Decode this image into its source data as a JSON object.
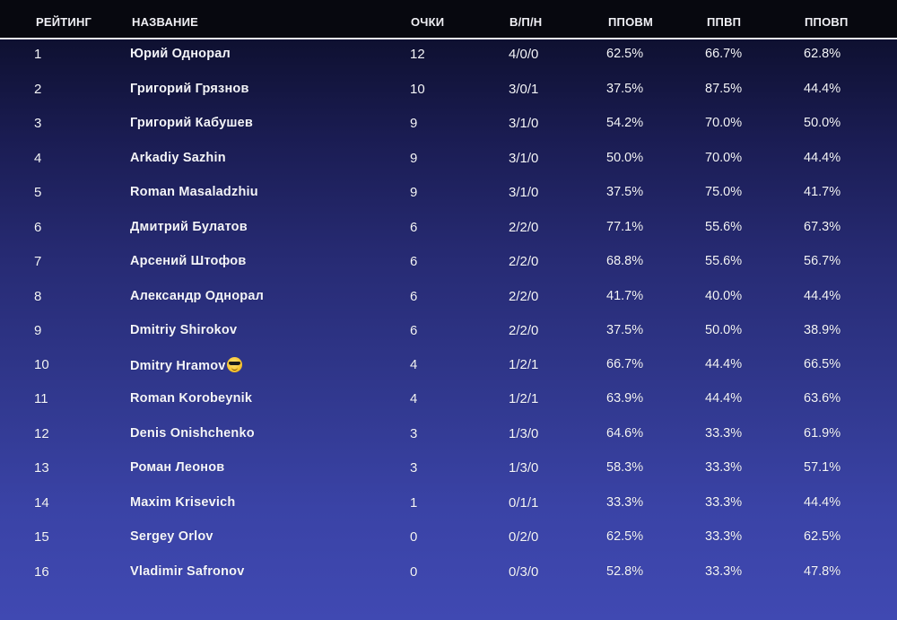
{
  "header": {
    "rank": "РЕЙТИНГ",
    "name": "НАЗВАНИЕ",
    "points": "ОЧКИ",
    "wdl": "В/П/Н",
    "ppovm": "ППОВМ",
    "ppvp": "ППВП",
    "ppovp": "ППОВП"
  },
  "rows": [
    {
      "rank": "1",
      "name": "Юрий Однорал",
      "points": "12",
      "wdl": "4/0/0",
      "ppovm": "62.5%",
      "ppvp": "66.7%",
      "ppovp": "62.8%",
      "emoji": false
    },
    {
      "rank": "2",
      "name": "Григорий Грязнов",
      "points": "10",
      "wdl": "3/0/1",
      "ppovm": "37.5%",
      "ppvp": "87.5%",
      "ppovp": "44.4%",
      "emoji": false
    },
    {
      "rank": "3",
      "name": "Григорий Кабушев",
      "points": "9",
      "wdl": "3/1/0",
      "ppovm": "54.2%",
      "ppvp": "70.0%",
      "ppovp": "50.0%",
      "emoji": false
    },
    {
      "rank": "4",
      "name": "Arkadiy Sazhin",
      "points": "9",
      "wdl": "3/1/0",
      "ppovm": "50.0%",
      "ppvp": "70.0%",
      "ppovp": "44.4%",
      "emoji": false
    },
    {
      "rank": "5",
      "name": "Roman Masaladzhiu",
      "points": "9",
      "wdl": "3/1/0",
      "ppovm": "37.5%",
      "ppvp": "75.0%",
      "ppovp": "41.7%",
      "emoji": false
    },
    {
      "rank": "6",
      "name": "Дмитрий Булатов",
      "points": "6",
      "wdl": "2/2/0",
      "ppovm": "77.1%",
      "ppvp": "55.6%",
      "ppovp": "67.3%",
      "emoji": false
    },
    {
      "rank": "7",
      "name": "Арсений Штофов",
      "points": "6",
      "wdl": "2/2/0",
      "ppovm": "68.8%",
      "ppvp": "55.6%",
      "ppovp": "56.7%",
      "emoji": false
    },
    {
      "rank": "8",
      "name": "Александр Однорал",
      "points": "6",
      "wdl": "2/2/0",
      "ppovm": "41.7%",
      "ppvp": "40.0%",
      "ppovp": "44.4%",
      "emoji": false
    },
    {
      "rank": "9",
      "name": "Dmitriy Shirokov",
      "points": "6",
      "wdl": "2/2/0",
      "ppovm": "37.5%",
      "ppvp": "50.0%",
      "ppovp": "38.9%",
      "emoji": false
    },
    {
      "rank": "10",
      "name": "Dmitry Hramov",
      "points": "4",
      "wdl": "1/2/1",
      "ppovm": "66.7%",
      "ppvp": "44.4%",
      "ppovp": "66.5%",
      "emoji": true
    },
    {
      "rank": "11",
      "name": "Roman Korobeynik",
      "points": "4",
      "wdl": "1/2/1",
      "ppovm": "63.9%",
      "ppvp": "44.4%",
      "ppovp": "63.6%",
      "emoji": false
    },
    {
      "rank": "12",
      "name": "Denis Onishchenko",
      "points": "3",
      "wdl": "1/3/0",
      "ppovm": "64.6%",
      "ppvp": "33.3%",
      "ppovp": "61.9%",
      "emoji": false
    },
    {
      "rank": "13",
      "name": "Роман Леонов",
      "points": "3",
      "wdl": "1/3/0",
      "ppovm": "58.3%",
      "ppvp": "33.3%",
      "ppovp": "57.1%",
      "emoji": false
    },
    {
      "rank": "14",
      "name": "Maxim Krisevich",
      "points": "1",
      "wdl": "0/1/1",
      "ppovm": "33.3%",
      "ppvp": "33.3%",
      "ppovp": "44.4%",
      "emoji": false
    },
    {
      "rank": "15",
      "name": "Sergey Orlov",
      "points": "0",
      "wdl": "0/2/0",
      "ppovm": "62.5%",
      "ppvp": "33.3%",
      "ppovp": "62.5%",
      "emoji": false
    },
    {
      "rank": "16",
      "name": "Vladimir Safronov",
      "points": "0",
      "wdl": "0/3/0",
      "ppovm": "52.8%",
      "ppvp": "33.3%",
      "ppovp": "47.8%",
      "emoji": false
    }
  ],
  "icons": {
    "sunglasses": "smiling-face-with-sunglasses-icon"
  },
  "colors": {
    "header_bg": "#07080f",
    "accent_line": "#e6e6ee",
    "text": "#f4f5fb"
  }
}
